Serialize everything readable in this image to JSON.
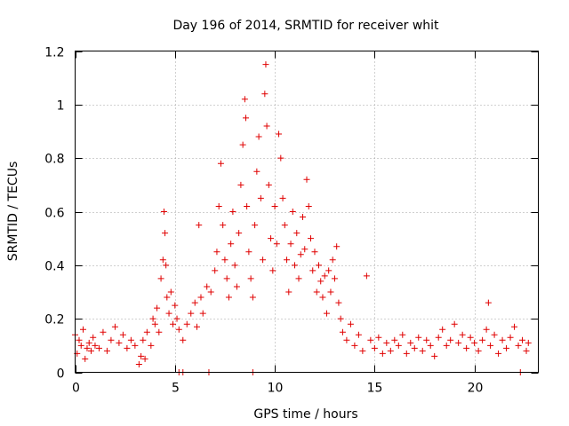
{
  "chart_data": {
    "type": "scatter",
    "title": "Day 196 of 2014, SRMTID for receiver whit",
    "xlabel": "GPS time / hours",
    "ylabel": "SRMTID / TECUs",
    "xlim": [
      0,
      23.2
    ],
    "ylim": [
      0,
      1.2
    ],
    "xticks": [
      "0",
      "5",
      "10",
      "15",
      "20"
    ],
    "yticks": [
      "0",
      "0.2",
      "0.4",
      "0.6",
      "0.8",
      "1",
      "1.2"
    ],
    "grid": true,
    "marker": "+",
    "color": "#e00000",
    "series": [
      {
        "name": "SRMTID",
        "points": [
          [
            0.0,
            0.14
          ],
          [
            0.1,
            0.07
          ],
          [
            0.2,
            0.12
          ],
          [
            0.3,
            0.1
          ],
          [
            0.4,
            0.16
          ],
          [
            0.5,
            0.05
          ],
          [
            0.6,
            0.09
          ],
          [
            0.7,
            0.11
          ],
          [
            0.8,
            0.08
          ],
          [
            0.9,
            0.13
          ],
          [
            1.0,
            0.1
          ],
          [
            1.2,
            0.09
          ],
          [
            1.4,
            0.15
          ],
          [
            1.6,
            0.08
          ],
          [
            1.8,
            0.12
          ],
          [
            2.0,
            0.17
          ],
          [
            2.2,
            0.11
          ],
          [
            2.4,
            0.14
          ],
          [
            2.6,
            0.09
          ],
          [
            2.8,
            0.12
          ],
          [
            3.0,
            0.1
          ],
          [
            3.2,
            0.03
          ],
          [
            3.3,
            0.06
          ],
          [
            3.4,
            0.12
          ],
          [
            3.5,
            0.05
          ],
          [
            3.6,
            0.15
          ],
          [
            3.8,
            0.1
          ],
          [
            3.9,
            0.2
          ],
          [
            4.0,
            0.18
          ],
          [
            4.1,
            0.24
          ],
          [
            4.2,
            0.15
          ],
          [
            4.3,
            0.35
          ],
          [
            4.4,
            0.42
          ],
          [
            4.45,
            0.6
          ],
          [
            4.5,
            0.52
          ],
          [
            4.55,
            0.4
          ],
          [
            4.6,
            0.28
          ],
          [
            4.7,
            0.22
          ],
          [
            4.8,
            0.3
          ],
          [
            4.9,
            0.18
          ],
          [
            5.0,
            0.25
          ],
          [
            5.1,
            0.2
          ],
          [
            5.2,
            0.16
          ],
          [
            5.4,
            0.12
          ],
          [
            5.6,
            0.18
          ],
          [
            5.8,
            0.22
          ],
          [
            6.0,
            0.26
          ],
          [
            6.1,
            0.17
          ],
          [
            6.2,
            0.55
          ],
          [
            6.3,
            0.28
          ],
          [
            6.4,
            0.22
          ],
          [
            6.6,
            0.32
          ],
          [
            6.8,
            0.3
          ],
          [
            7.0,
            0.38
          ],
          [
            7.1,
            0.45
          ],
          [
            7.2,
            0.62
          ],
          [
            7.3,
            0.78
          ],
          [
            7.4,
            0.55
          ],
          [
            7.5,
            0.42
          ],
          [
            7.6,
            0.35
          ],
          [
            7.7,
            0.28
          ],
          [
            7.8,
            0.48
          ],
          [
            7.9,
            0.6
          ],
          [
            8.0,
            0.4
          ],
          [
            8.1,
            0.32
          ],
          [
            8.2,
            0.52
          ],
          [
            8.3,
            0.7
          ],
          [
            8.4,
            0.85
          ],
          [
            8.5,
            1.02
          ],
          [
            8.55,
            0.95
          ],
          [
            8.6,
            0.62
          ],
          [
            8.7,
            0.45
          ],
          [
            8.8,
            0.35
          ],
          [
            8.9,
            0.28
          ],
          [
            9.0,
            0.55
          ],
          [
            9.1,
            0.75
          ],
          [
            9.2,
            0.88
          ],
          [
            9.3,
            0.65
          ],
          [
            9.4,
            0.42
          ],
          [
            9.5,
            1.04
          ],
          [
            9.55,
            1.15
          ],
          [
            9.6,
            0.92
          ],
          [
            9.7,
            0.7
          ],
          [
            9.8,
            0.5
          ],
          [
            9.9,
            0.38
          ],
          [
            10.0,
            0.62
          ],
          [
            10.1,
            0.48
          ],
          [
            10.2,
            0.89
          ],
          [
            10.3,
            0.8
          ],
          [
            10.4,
            0.65
          ],
          [
            10.5,
            0.55
          ],
          [
            10.6,
            0.42
          ],
          [
            10.7,
            0.3
          ],
          [
            10.8,
            0.48
          ],
          [
            10.9,
            0.6
          ],
          [
            11.0,
            0.4
          ],
          [
            11.1,
            0.52
          ],
          [
            11.2,
            0.35
          ],
          [
            11.3,
            0.44
          ],
          [
            11.4,
            0.58
          ],
          [
            11.5,
            0.46
          ],
          [
            11.6,
            0.72
          ],
          [
            11.7,
            0.62
          ],
          [
            11.8,
            0.5
          ],
          [
            11.9,
            0.38
          ],
          [
            12.0,
            0.45
          ],
          [
            12.1,
            0.3
          ],
          [
            12.2,
            0.4
          ],
          [
            12.3,
            0.34
          ],
          [
            12.4,
            0.28
          ],
          [
            12.5,
            0.36
          ],
          [
            12.6,
            0.22
          ],
          [
            12.7,
            0.38
          ],
          [
            12.8,
            0.3
          ],
          [
            12.9,
            0.42
          ],
          [
            13.0,
            0.35
          ],
          [
            13.1,
            0.47
          ],
          [
            13.2,
            0.26
          ],
          [
            13.3,
            0.2
          ],
          [
            13.4,
            0.15
          ],
          [
            13.6,
            0.12
          ],
          [
            13.8,
            0.18
          ],
          [
            14.0,
            0.1
          ],
          [
            14.2,
            0.14
          ],
          [
            14.4,
            0.08
          ],
          [
            14.6,
            0.36
          ],
          [
            14.8,
            0.12
          ],
          [
            15.0,
            0.09
          ],
          [
            15.2,
            0.13
          ],
          [
            15.4,
            0.07
          ],
          [
            15.6,
            0.11
          ],
          [
            15.8,
            0.08
          ],
          [
            16.0,
            0.12
          ],
          [
            16.2,
            0.1
          ],
          [
            16.4,
            0.14
          ],
          [
            16.6,
            0.07
          ],
          [
            16.8,
            0.11
          ],
          [
            17.0,
            0.09
          ],
          [
            17.2,
            0.13
          ],
          [
            17.4,
            0.08
          ],
          [
            17.6,
            0.12
          ],
          [
            17.8,
            0.1
          ],
          [
            18.0,
            0.06
          ],
          [
            18.2,
            0.13
          ],
          [
            18.4,
            0.16
          ],
          [
            18.6,
            0.1
          ],
          [
            18.8,
            0.12
          ],
          [
            19.0,
            0.18
          ],
          [
            19.2,
            0.11
          ],
          [
            19.4,
            0.14
          ],
          [
            19.6,
            0.09
          ],
          [
            19.8,
            0.13
          ],
          [
            20.0,
            0.11
          ],
          [
            20.2,
            0.08
          ],
          [
            20.4,
            0.12
          ],
          [
            20.6,
            0.16
          ],
          [
            20.7,
            0.26
          ],
          [
            20.8,
            0.1
          ],
          [
            21.0,
            0.14
          ],
          [
            21.2,
            0.07
          ],
          [
            21.4,
            0.12
          ],
          [
            21.6,
            0.09
          ],
          [
            21.8,
            0.13
          ],
          [
            22.0,
            0.17
          ],
          [
            22.2,
            0.1
          ],
          [
            22.4,
            0.12
          ],
          [
            22.6,
            0.08
          ],
          [
            22.7,
            0.11
          ],
          [
            5.2,
            0.0
          ],
          [
            5.4,
            0.0
          ],
          [
            6.7,
            0.0
          ],
          [
            8.9,
            0.0
          ],
          [
            22.3,
            0.0
          ]
        ]
      }
    ]
  }
}
